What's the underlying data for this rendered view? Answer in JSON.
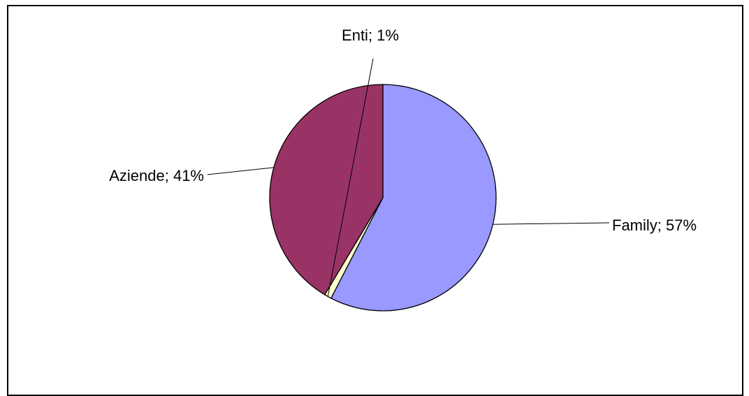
{
  "chart_data": {
    "type": "pie",
    "title": "",
    "slices": [
      {
        "name": "Family",
        "value": 57,
        "label": "Family; 57%",
        "color": "#9999ff"
      },
      {
        "name": "Enti",
        "value": 1,
        "label": "Enti; 1%",
        "color": "#ffffcc"
      },
      {
        "name": "Aziende",
        "value": 41,
        "label": "Aziende; 41%",
        "color": "#993366"
      }
    ],
    "start_angle_deg": 0,
    "direction": "clockwise",
    "legend": "none",
    "labels_with_leader_lines": true,
    "edge_color": "#000000"
  }
}
